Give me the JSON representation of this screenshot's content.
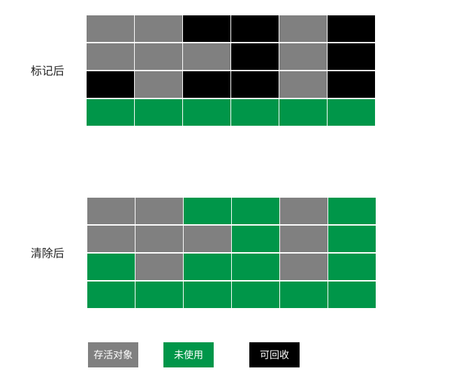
{
  "colors": {
    "live": "#808080",
    "free": "#009649",
    "reclaimable": "#000000"
  },
  "after_mark": {
    "label": "标记后",
    "rows": [
      [
        "live",
        "live",
        "reclaimable",
        "reclaimable",
        "live",
        "reclaimable"
      ],
      [
        "live",
        "live",
        "live",
        "reclaimable",
        "live",
        "reclaimable"
      ],
      [
        "reclaimable",
        "live",
        "reclaimable",
        "reclaimable",
        "live",
        "reclaimable"
      ],
      [
        "free",
        "free",
        "free",
        "free",
        "free",
        "free"
      ]
    ]
  },
  "after_sweep": {
    "label": "清除后",
    "rows": [
      [
        "live",
        "live",
        "free",
        "free",
        "live",
        "free"
      ],
      [
        "live",
        "live",
        "live",
        "free",
        "live",
        "free"
      ],
      [
        "free",
        "live",
        "free",
        "free",
        "live",
        "free"
      ],
      [
        "free",
        "free",
        "free",
        "free",
        "free",
        "free"
      ]
    ]
  },
  "legend": [
    {
      "key": "live",
      "label": "存活对象"
    },
    {
      "key": "free",
      "label": "未使用"
    },
    {
      "key": "reclaimable",
      "label": "可回收"
    }
  ]
}
